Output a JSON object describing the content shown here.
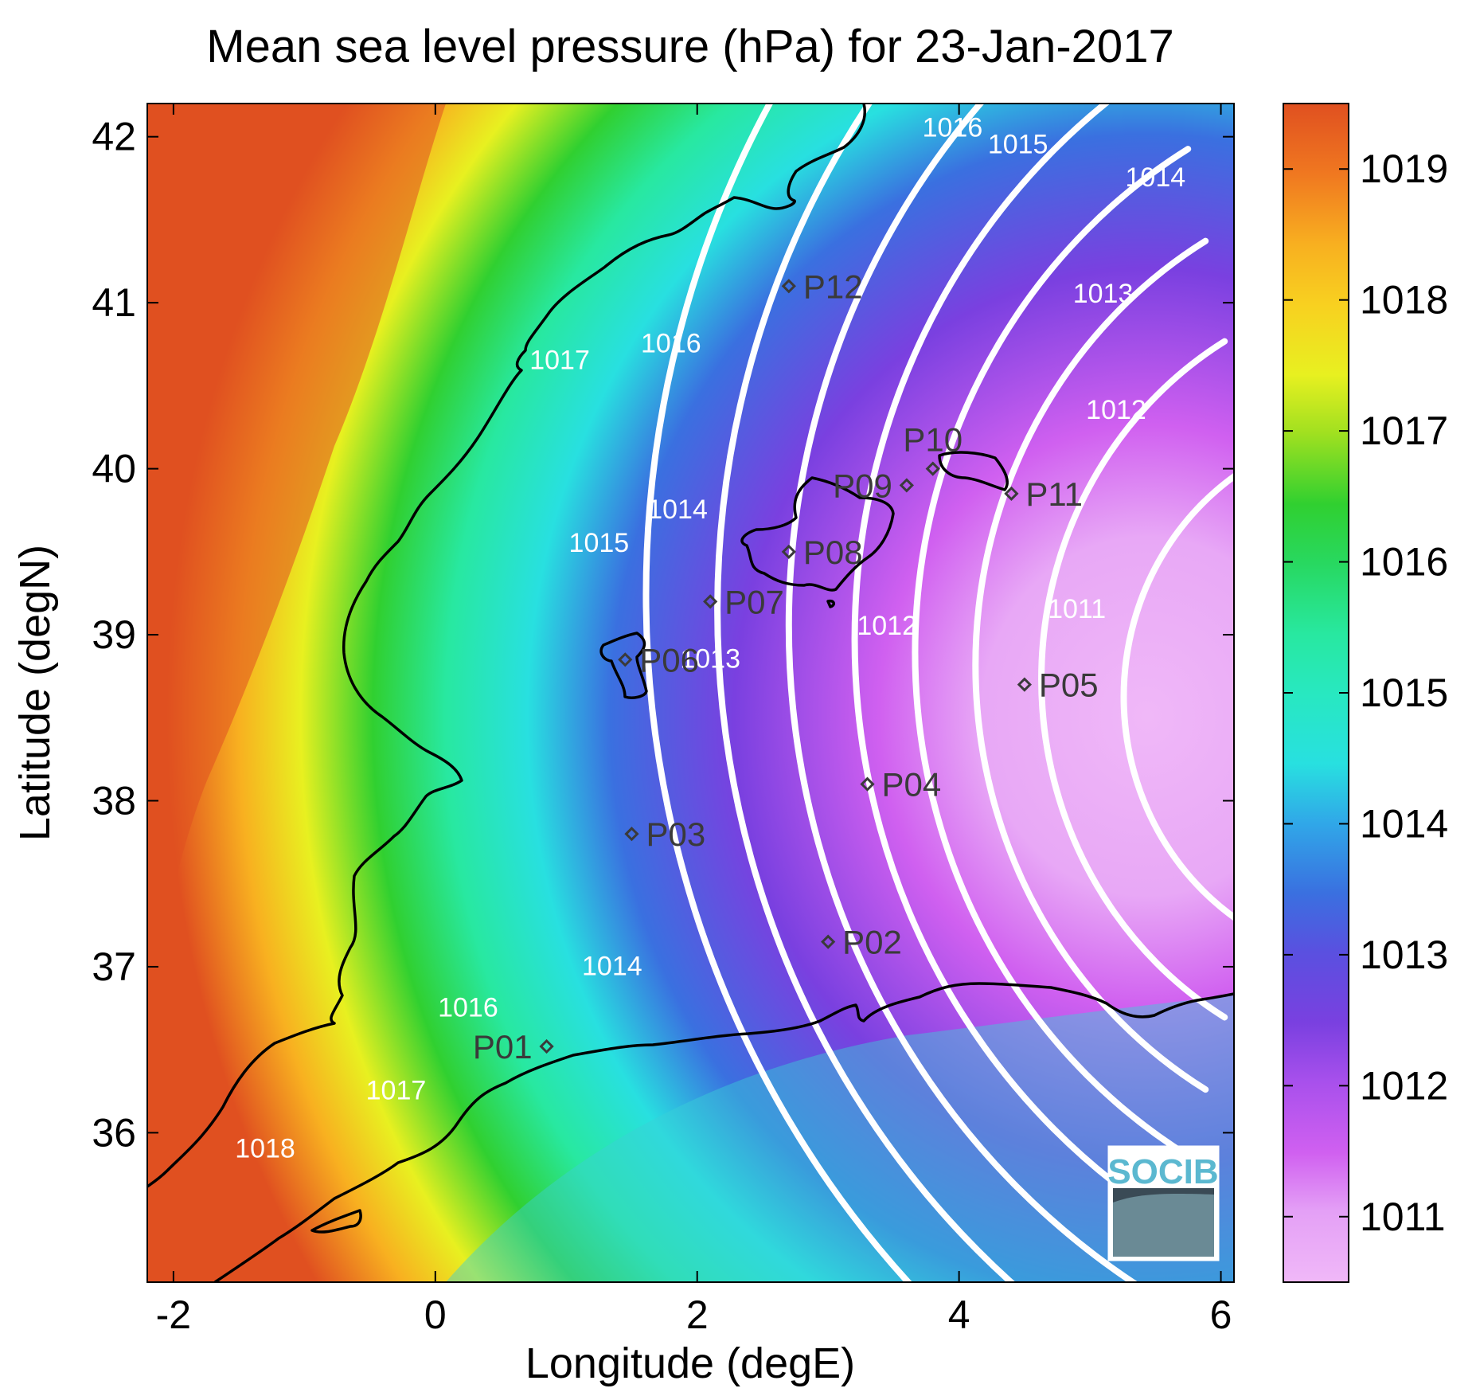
{
  "chart_data": {
    "type": "heatmap",
    "title": "Mean sea level pressure (hPa) for 23-Jan-2017",
    "xlabel": "Longitude (degE)",
    "ylabel": "Latitude (degN)",
    "xlim": [
      -2.2,
      6.1
    ],
    "ylim": [
      35.1,
      42.2
    ],
    "xticks": [
      -2,
      0,
      2,
      4,
      6
    ],
    "yticks": [
      36,
      37,
      38,
      39,
      40,
      41,
      42
    ],
    "colorbar": {
      "range": [
        1010.5,
        1019.5
      ],
      "ticks": [
        1011,
        1012,
        1013,
        1014,
        1015,
        1016,
        1017,
        1018,
        1019
      ]
    },
    "colors": {
      "1010.5": "#f0b8f8",
      "1011": "#d060f0",
      "1012": "#7a40e0",
      "1013": "#3a70e0",
      "1014": "#28e0e0",
      "1015": "#28e8a8",
      "1016": "#30d030",
      "1017": "#e8f020",
      "1018": "#f8b020",
      "1019": "#e05020"
    },
    "contour_labels": [
      {
        "value": "1011",
        "lon": 4.9,
        "lat": 39.1
      },
      {
        "value": "1012",
        "lon": 5.2,
        "lat": 40.3
      },
      {
        "value": "1012",
        "lon": 3.45,
        "lat": 39.0
      },
      {
        "value": "1013",
        "lon": 5.1,
        "lat": 41.0
      },
      {
        "value": "1013",
        "lon": 2.1,
        "lat": 38.8
      },
      {
        "value": "1014",
        "lon": 5.5,
        "lat": 41.7
      },
      {
        "value": "1014",
        "lon": 1.85,
        "lat": 39.7
      },
      {
        "value": "1014",
        "lon": 1.35,
        "lat": 36.95
      },
      {
        "value": "1015",
        "lon": 4.45,
        "lat": 41.9
      },
      {
        "value": "1015",
        "lon": 1.25,
        "lat": 39.5
      },
      {
        "value": "1016",
        "lon": 3.95,
        "lat": 42.0
      },
      {
        "value": "1016",
        "lon": 1.8,
        "lat": 40.7
      },
      {
        "value": "1016",
        "lon": 0.25,
        "lat": 36.7
      },
      {
        "value": "1017",
        "lon": 0.95,
        "lat": 40.6
      },
      {
        "value": "1017",
        "lon": -0.3,
        "lat": 36.2
      },
      {
        "value": "1018",
        "lon": -1.3,
        "lat": 35.85
      }
    ],
    "stations": [
      {
        "name": "P01",
        "lon": 0.85,
        "lat": 36.52,
        "label_side": "left"
      },
      {
        "name": "P02",
        "lon": 3.0,
        "lat": 37.15,
        "label_side": "right"
      },
      {
        "name": "P03",
        "lon": 1.5,
        "lat": 37.8,
        "label_side": "right"
      },
      {
        "name": "P04",
        "lon": 3.3,
        "lat": 38.1,
        "label_side": "right"
      },
      {
        "name": "P05",
        "lon": 4.5,
        "lat": 38.7,
        "label_side": "right"
      },
      {
        "name": "P06",
        "lon": 1.45,
        "lat": 38.85,
        "label_side": "right"
      },
      {
        "name": "P07",
        "lon": 2.1,
        "lat": 39.2,
        "label_side": "right"
      },
      {
        "name": "P08",
        "lon": 2.7,
        "lat": 39.5,
        "label_side": "right"
      },
      {
        "name": "P09",
        "lon": 3.6,
        "lat": 39.9,
        "label_side": "left"
      },
      {
        "name": "P10",
        "lon": 3.8,
        "lat": 40.0,
        "label_side": "above"
      },
      {
        "name": "P11",
        "lon": 4.4,
        "lat": 39.85,
        "label_side": "right"
      },
      {
        "name": "P12",
        "lon": 2.7,
        "lat": 41.1,
        "label_side": "right"
      }
    ]
  },
  "logo": {
    "text": "SOCIB"
  }
}
